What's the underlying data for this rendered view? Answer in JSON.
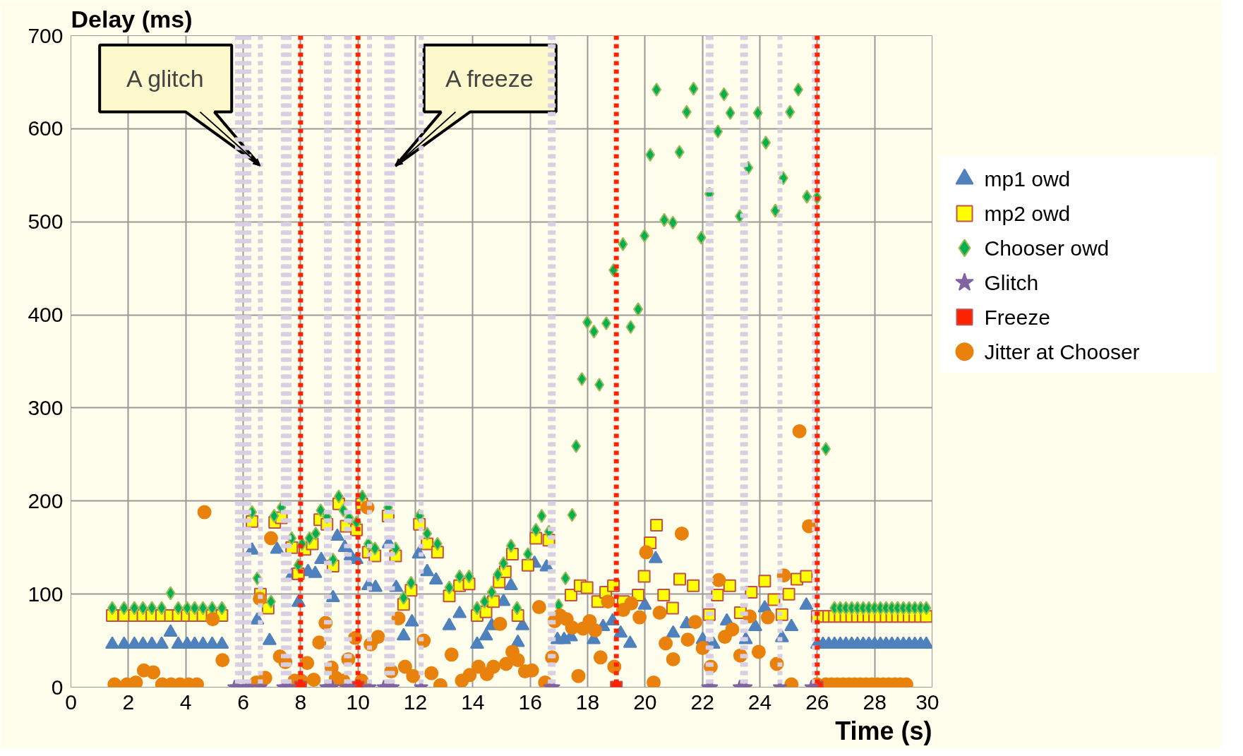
{
  "chart_data": {
    "type": "scatter",
    "xlabel": "Time (s)",
    "ylabel": "Delay (ms)",
    "xlim": [
      0,
      30
    ],
    "ylim": [
      0,
      700
    ],
    "xticks": [
      0,
      2,
      4,
      6,
      8,
      10,
      12,
      14,
      16,
      18,
      20,
      22,
      24,
      26,
      28,
      30
    ],
    "yticks": [
      0,
      100,
      200,
      300,
      400,
      500,
      600,
      700
    ],
    "grid": true,
    "legend": "right",
    "annotations": [
      {
        "text": "A glitch",
        "x": 6.6,
        "y": 560
      },
      {
        "text": "A freeze",
        "x": 11.3,
        "y": 560
      }
    ],
    "ref_lines": [
      {
        "axis": "x",
        "value": 5.8,
        "color": "#d8cfe3",
        "line_style": "dashed"
      },
      {
        "axis": "x",
        "value": 5.9,
        "color": "#d8cfe3",
        "line_style": "dashed"
      },
      {
        "axis": "x",
        "value": 6.0,
        "color": "#d8cfe3",
        "line_style": "dashed"
      },
      {
        "axis": "x",
        "value": 6.1,
        "color": "#d8cfe3",
        "line_style": "dashed"
      },
      {
        "axis": "x",
        "value": 6.2,
        "color": "#d8cfe3",
        "line_style": "dashed"
      },
      {
        "axis": "x",
        "value": 6.6,
        "color": "#d8cfe3",
        "line_style": "dashed"
      },
      {
        "axis": "x",
        "value": 7.4,
        "color": "#d8cfe3",
        "line_style": "dashed"
      },
      {
        "axis": "x",
        "value": 7.5,
        "color": "#d8cfe3",
        "line_style": "dashed"
      },
      {
        "axis": "x",
        "value": 7.6,
        "color": "#d8cfe3",
        "line_style": "dashed"
      },
      {
        "axis": "x",
        "value": 8.9,
        "color": "#d8cfe3",
        "line_style": "dashed"
      },
      {
        "axis": "x",
        "value": 9.0,
        "color": "#d8cfe3",
        "line_style": "dashed"
      },
      {
        "axis": "x",
        "value": 9.6,
        "color": "#d8cfe3",
        "line_style": "dashed"
      },
      {
        "axis": "x",
        "value": 9.7,
        "color": "#d8cfe3",
        "line_style": "dashed"
      },
      {
        "axis": "x",
        "value": 10.4,
        "color": "#d8cfe3",
        "line_style": "dashed"
      },
      {
        "axis": "x",
        "value": 11.0,
        "color": "#d8cfe3",
        "line_style": "dashed"
      },
      {
        "axis": "x",
        "value": 11.1,
        "color": "#d8cfe3",
        "line_style": "dashed"
      },
      {
        "axis": "x",
        "value": 11.2,
        "color": "#d8cfe3",
        "line_style": "dashed"
      },
      {
        "axis": "x",
        "value": 12.2,
        "color": "#d8cfe3",
        "line_style": "dashed"
      },
      {
        "axis": "x",
        "value": 16.7,
        "color": "#d8cfe3",
        "line_style": "dashed"
      },
      {
        "axis": "x",
        "value": 16.8,
        "color": "#d8cfe3",
        "line_style": "dashed"
      },
      {
        "axis": "x",
        "value": 22.2,
        "color": "#d8cfe3",
        "line_style": "dashed"
      },
      {
        "axis": "x",
        "value": 22.3,
        "color": "#d8cfe3",
        "line_style": "dashed"
      },
      {
        "axis": "x",
        "value": 23.4,
        "color": "#d8cfe3",
        "line_style": "dashed"
      },
      {
        "axis": "x",
        "value": 23.5,
        "color": "#d8cfe3",
        "line_style": "dashed"
      },
      {
        "axis": "x",
        "value": 24.7,
        "color": "#d8cfe3",
        "line_style": "dashed"
      },
      {
        "axis": "x",
        "value": 25.9,
        "color": "#d8cfe3",
        "line_style": "dashed"
      },
      {
        "axis": "x",
        "value": 8,
        "color": "#ff2200",
        "line_style": "dashed"
      },
      {
        "axis": "x",
        "value": 10,
        "color": "#ff2200",
        "line_style": "dashed"
      },
      {
        "axis": "x",
        "value": 19,
        "color": "#ff2200",
        "line_style": "dashed"
      },
      {
        "axis": "x",
        "value": 26,
        "color": "#ff2200",
        "line_style": "dashed"
      }
    ],
    "series": [
      {
        "name": "mp1 owd",
        "color": "#4f81bd",
        "marker": "triangle",
        "x": [
          1.44,
          1.85,
          2.21,
          2.51,
          2.82,
          3.16,
          3.47,
          3.74,
          4.05,
          4.31,
          4.6,
          4.92,
          5.26,
          6.31,
          6.49,
          6.92,
          7.18,
          7.69,
          7.93,
          8.26,
          8.51,
          8.72,
          9.13,
          9.28,
          9.54,
          9.74,
          9.95,
          10.36,
          10.61,
          11.07,
          11.33,
          11.59,
          11.88,
          12.12,
          12.41,
          12.72,
          13.18,
          13.54,
          14.15,
          14.46,
          14.66,
          15.07,
          15.33,
          15.57,
          15.73,
          16.15,
          16.57,
          16.95,
          17.18,
          17.42,
          18.21,
          18.54,
          18.87,
          19.15,
          19.48,
          19.99,
          20.37,
          20.98,
          21.45,
          22.01,
          22.38,
          22.85,
          23.51,
          23.84,
          24.17,
          24.77,
          25.1,
          25.62,
          26.0,
          26.2,
          26.4,
          26.6,
          26.8,
          27.0,
          27.2,
          27.4,
          27.6,
          27.8,
          28.0,
          28.2,
          28.4,
          28.6,
          28.8,
          29.0,
          29.2,
          29.4,
          29.6,
          29.8
        ],
        "values": [
          46,
          46,
          46,
          46,
          46,
          46,
          59,
          46,
          46,
          46,
          46,
          46,
          46,
          147,
          72,
          50,
          148,
          120,
          91,
          124,
          122,
          137,
          96,
          162,
          150,
          141,
          137,
          109,
          107,
          154,
          107,
          55,
          70,
          143,
          124,
          115,
          66,
          79,
          46,
          55,
          66,
          92,
          109,
          48,
          66,
          133,
          129,
          51,
          51,
          54,
          51,
          65,
          71,
          58,
          47,
          88,
          138,
          58,
          68,
          51,
          46,
          71,
          51,
          65,
          85,
          53,
          65,
          88,
          46,
          46,
          46,
          46,
          46,
          46,
          46,
          46,
          46,
          46,
          46,
          46,
          46,
          46,
          46,
          46,
          46,
          46,
          46,
          46
        ]
      },
      {
        "name": "mp2 owd",
        "color": "#ffff00",
        "marker": "square",
        "x": [
          1.44,
          1.85,
          2.21,
          2.51,
          2.82,
          3.16,
          3.47,
          3.74,
          4.05,
          4.31,
          4.6,
          4.92,
          5.26,
          6.31,
          6.6,
          6.87,
          7.1,
          7.33,
          7.69,
          7.92,
          8.15,
          8.41,
          8.67,
          8.92,
          9.13,
          9.33,
          9.59,
          9.95,
          10.13,
          10.36,
          10.59,
          11.05,
          11.31,
          11.59,
          11.85,
          12.14,
          12.41,
          12.77,
          13.18,
          13.54,
          13.87,
          14.15,
          14.46,
          14.72,
          14.92,
          15.13,
          15.38,
          15.57,
          15.92,
          16.2,
          16.65,
          17.42,
          17.74,
          17.98,
          18.35,
          18.63,
          18.9,
          19.24,
          19.76,
          19.97,
          20.18,
          20.4,
          20.65,
          20.96,
          21.21,
          21.68,
          22.24,
          22.52,
          22.95,
          23.32,
          23.7,
          24.17,
          24.49,
          24.77,
          25.01,
          25.29,
          25.62,
          26.0,
          26.2,
          26.4,
          26.6,
          26.8,
          27.0,
          27.2,
          27.4,
          27.6,
          27.8,
          28.0,
          28.2,
          28.4,
          28.6,
          28.8,
          29.0,
          29.2,
          29.4,
          29.6,
          29.8
        ],
        "values": [
          77,
          77,
          77,
          77,
          77,
          77,
          77,
          77,
          77,
          77,
          77,
          77,
          77,
          178,
          100,
          85,
          177,
          182,
          150,
          122,
          148,
          154,
          180,
          175,
          130,
          197,
          173,
          169,
          197,
          145,
          141,
          184,
          141,
          89,
          104,
          175,
          154,
          145,
          98,
          109,
          111,
          77,
          81,
          92,
          113,
          124,
          143,
          77,
          131,
          160,
          158,
          99,
          109,
          107,
          92,
          102,
          109,
          92,
          99,
          119,
          155,
          174,
          99,
          85,
          116,
          109,
          78,
          99,
          109,
          80,
          102,
          114,
          94,
          78,
          100,
          116,
          119,
          76,
          76,
          76,
          76,
          76,
          76,
          76,
          76,
          76,
          76,
          76,
          76,
          76,
          76,
          76,
          76,
          76,
          76,
          76,
          76
        ]
      },
      {
        "name": "Chooser owd",
        "color": "#00b050",
        "marker": "diamond",
        "x": [
          1.44,
          1.85,
          2.21,
          2.51,
          2.82,
          3.16,
          3.47,
          3.74,
          4.05,
          4.31,
          4.6,
          4.92,
          5.26,
          6.31,
          6.49,
          6.97,
          7.08,
          7.33,
          7.69,
          7.92,
          8.05,
          8.31,
          8.53,
          8.7,
          8.92,
          9.13,
          9.33,
          9.49,
          9.69,
          9.95,
          10.15,
          10.36,
          10.59,
          11.05,
          11.31,
          11.59,
          11.85,
          12.14,
          12.41,
          12.77,
          13.18,
          13.54,
          13.87,
          14.15,
          14.41,
          14.66,
          14.87,
          15.07,
          15.33,
          15.54,
          15.92,
          16.2,
          16.4,
          16.65,
          16.99,
          17.23,
          17.46,
          17.6,
          17.8,
          17.99,
          18.22,
          18.41,
          18.65,
          18.9,
          19.23,
          19.5,
          19.76,
          19.98,
          20.18,
          20.4,
          20.67,
          20.97,
          21.2,
          21.45,
          21.69,
          21.96,
          22.24,
          22.54,
          22.75,
          22.97,
          23.3,
          23.6,
          23.93,
          24.21,
          24.54,
          24.82,
          25.05,
          25.34,
          25.64,
          25.99,
          26.3,
          26.6,
          26.8,
          27.0,
          27.2,
          27.4,
          27.6,
          27.8,
          28.0,
          28.2,
          28.4,
          28.6,
          28.8,
          29.0,
          29.2,
          29.4,
          29.6,
          29.8
        ],
        "values": [
          85,
          85,
          85,
          85,
          85,
          85,
          101,
          85,
          85,
          85,
          85,
          85,
          85,
          188,
          117,
          92,
          184,
          193,
          160,
          131,
          154,
          160,
          165,
          190,
          183,
          137,
          205,
          190,
          182,
          177,
          205,
          154,
          149,
          193,
          149,
          96,
          112,
          184,
          165,
          154,
          107,
          119,
          119,
          85,
          92,
          102,
          121,
          133,
          152,
          85,
          143,
          169,
          184,
          167,
          88,
          117,
          185,
          259,
          331,
          392,
          382,
          325,
          391,
          448,
          476,
          387,
          406,
          485,
          572,
          642,
          502,
          499,
          575,
          618,
          643,
          483,
          530,
          597,
          637,
          617,
          506,
          558,
          617,
          585,
          512,
          547,
          618,
          642,
          527,
          526,
          256,
          85,
          85,
          85,
          85,
          85,
          85,
          85,
          85,
          85,
          85,
          85,
          85,
          85,
          85,
          85,
          85,
          85
        ]
      },
      {
        "name": "Glitch",
        "color": "#8064a2",
        "marker": "star",
        "x": [
          5.7,
          5.8,
          6.1,
          6.2,
          6.6,
          7.4,
          7.5,
          7.6,
          8.9,
          9.0,
          9.1,
          9.6,
          9.7,
          10.4,
          10.9,
          11.0,
          11.1,
          11.2,
          12.2,
          16.7,
          16.8,
          22.2,
          22.3,
          23.3,
          23.4,
          23.5,
          24.7,
          25.8
        ],
        "values": [
          0,
          0,
          0,
          0,
          0,
          0,
          0,
          0,
          0,
          0,
          0,
          0,
          0,
          0,
          0,
          0,
          0,
          0,
          0,
          0,
          0,
          0,
          0,
          0,
          0,
          0,
          0,
          0
        ]
      },
      {
        "name": "Freeze",
        "color": "#ff2200",
        "marker": "square",
        "x": [
          8,
          10,
          19,
          26
        ],
        "values": [
          0,
          0,
          0,
          0
        ]
      },
      {
        "name": "Jitter at Chooser",
        "color": "#e8820c",
        "marker": "circle",
        "x": [
          1.52,
          1.95,
          2.26,
          2.54,
          2.87,
          3.18,
          3.49,
          3.8,
          4.1,
          4.39,
          4.65,
          4.94,
          5.28,
          6.46,
          6.58,
          6.77,
          6.97,
          7.28,
          7.47,
          7.79,
          8.02,
          8.23,
          8.46,
          8.65,
          8.87,
          9.08,
          9.23,
          9.49,
          9.66,
          9.9,
          10.13,
          10.33,
          10.44,
          10.7,
          11.16,
          11.41,
          11.64,
          11.92,
          12.29,
          12.56,
          12.87,
          13.26,
          13.62,
          13.89,
          14.2,
          14.49,
          14.72,
          14.95,
          15.16,
          15.38,
          15.57,
          15.82,
          16.06,
          16.31,
          16.52,
          16.76,
          16.85,
          17.04,
          17.27,
          17.46,
          17.68,
          17.84,
          18.07,
          18.26,
          18.45,
          18.71,
          18.93,
          19.24,
          19.52,
          19.81,
          20.04,
          20.3,
          20.51,
          20.72,
          20.98,
          21.28,
          21.49,
          21.75,
          22.01,
          22.29,
          22.57,
          22.78,
          23.04,
          23.32,
          23.65,
          23.96,
          24.28,
          24.59,
          24.84,
          25.1,
          25.38,
          25.71,
          25.99,
          26.3,
          26.5,
          26.7,
          26.9,
          27.1,
          27.3,
          27.5,
          27.7,
          27.9,
          28.1,
          28.3,
          28.5,
          28.7,
          28.9,
          29.1
        ],
        "values": [
          3,
          3,
          5,
          18,
          16,
          3,
          3,
          3,
          3,
          3,
          188,
          73,
          29,
          5,
          95,
          10,
          160,
          33,
          27,
          7,
          7,
          26,
          8,
          48,
          69,
          21,
          10,
          7,
          30,
          53,
          7,
          193,
          46,
          54,
          17,
          74,
          22,
          12,
          50,
          15,
          2,
          35,
          7,
          13,
          22,
          14,
          22,
          68,
          25,
          38,
          29,
          17,
          18,
          86,
          5,
          32,
          71,
          77,
          73,
          64,
          12,
          63,
          71,
          61,
          32,
          92,
          22,
          83,
          90,
          75,
          145,
          5,
          80,
          47,
          30,
          165,
          51,
          70,
          42,
          22,
          115,
          54,
          62,
          34,
          76,
          38,
          75,
          25,
          120,
          3,
          275,
          173,
          3,
          3,
          3,
          3,
          3,
          3,
          3,
          3,
          3,
          3,
          3,
          3,
          3,
          3,
          3,
          3
        ]
      }
    ]
  }
}
